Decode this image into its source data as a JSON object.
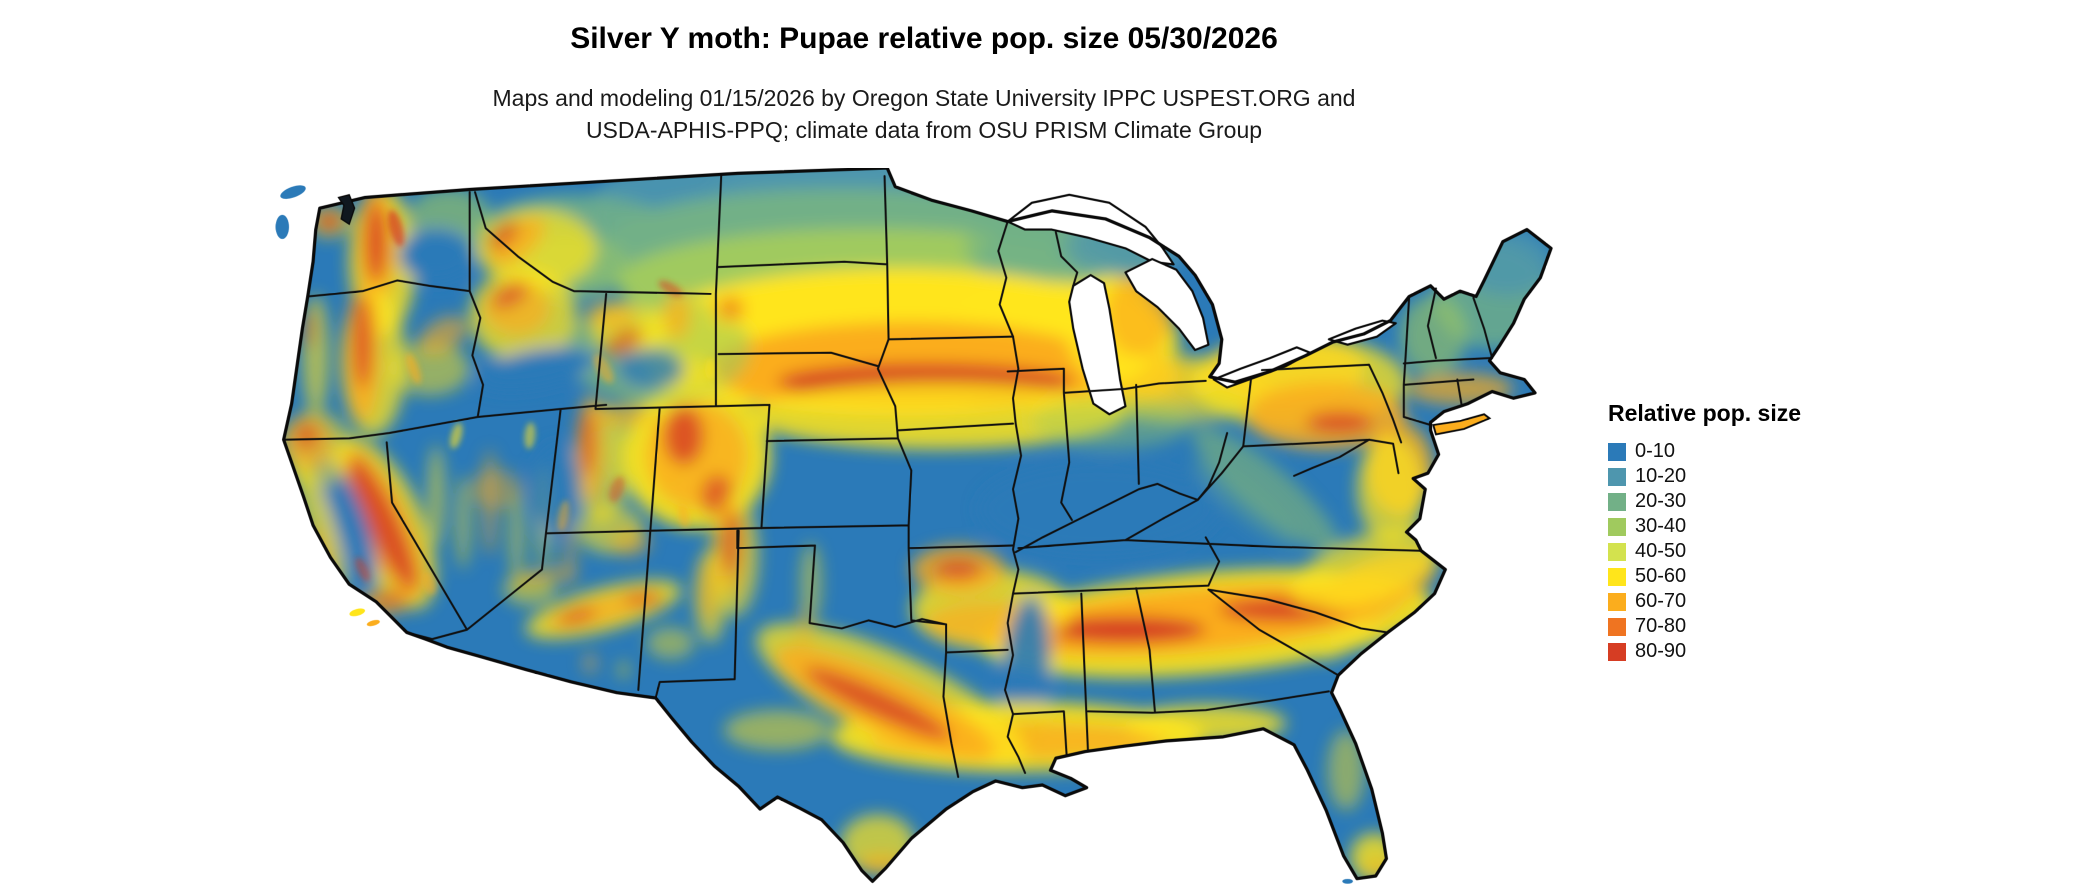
{
  "title": "Silver Y moth: Pupae relative pop. size 05/30/2026",
  "subtitle": {
    "line1": "Maps and modeling 01/15/2026 by Oregon State University IPPC USPEST.ORG and",
    "line2": "USDA-APHIS-PPQ; climate data from OSU PRISM Climate Group"
  },
  "legend": {
    "title": "Relative pop. size",
    "items": [
      {
        "label": "0-10",
        "color": "#2b7ab8"
      },
      {
        "label": "10-20",
        "color": "#4e96ae"
      },
      {
        "label": "20-30",
        "color": "#72b087"
      },
      {
        "label": "30-40",
        "color": "#a0ca5e"
      },
      {
        "label": "40-50",
        "color": "#d3e24e"
      },
      {
        "label": "50-60",
        "color": "#ffe51b"
      },
      {
        "label": "60-70",
        "color": "#fbad1d"
      },
      {
        "label": "70-80",
        "color": "#ef7421"
      },
      {
        "label": "80-90",
        "color": "#d63d23"
      }
    ]
  },
  "colors": {
    "background": "#ffffff",
    "border": "#0a0a0a",
    "base_land": "#2b7ab8"
  }
}
